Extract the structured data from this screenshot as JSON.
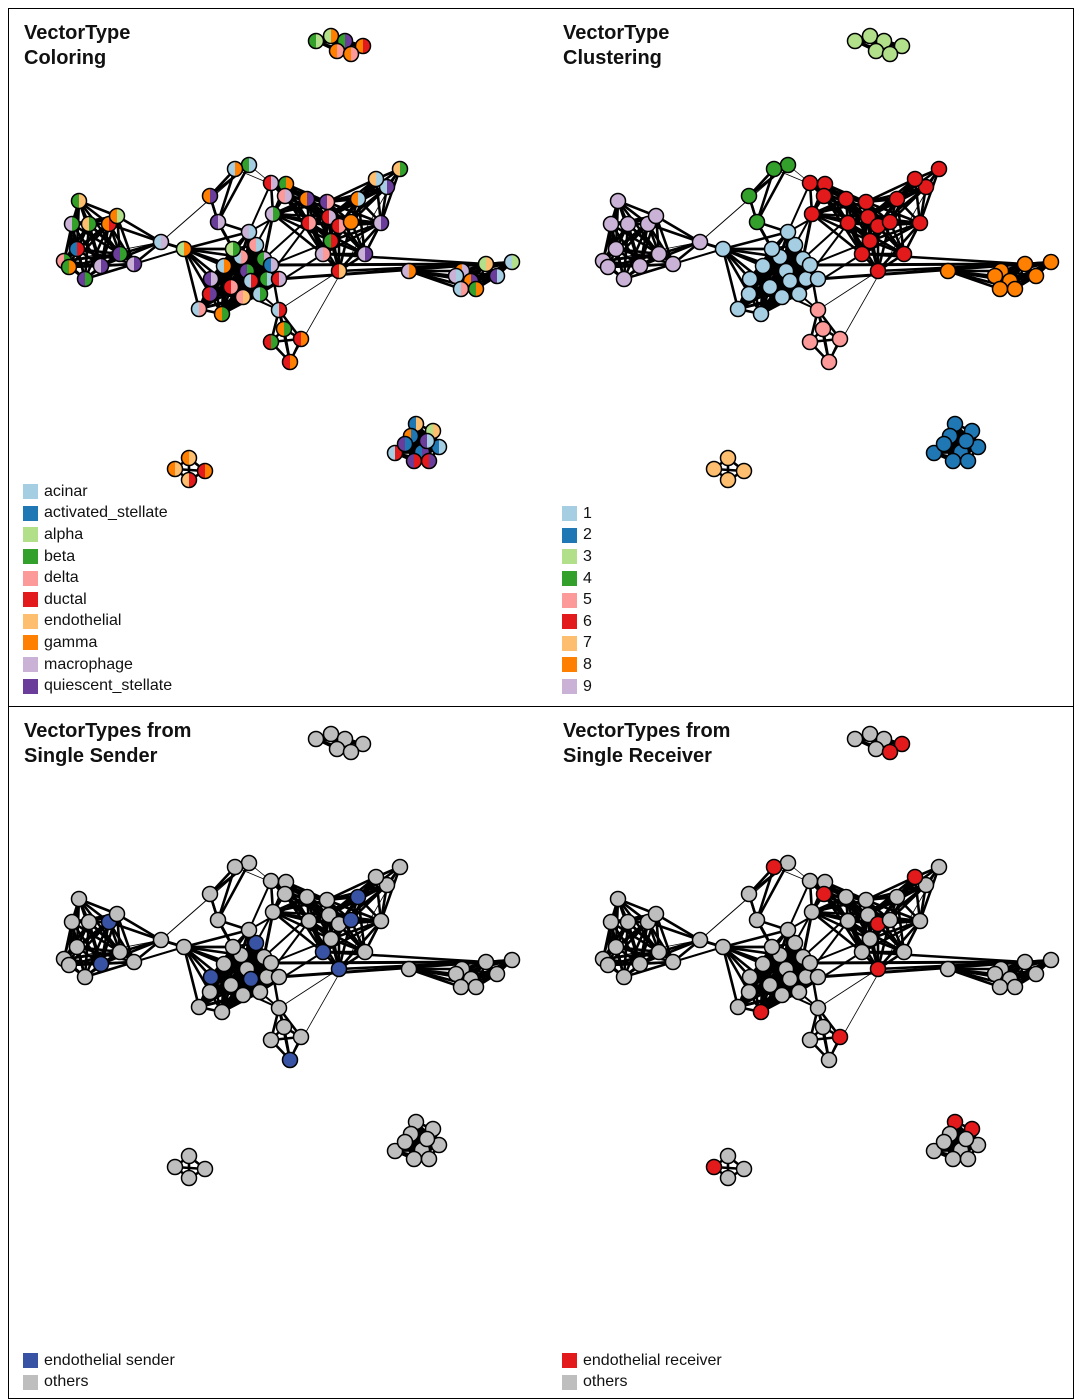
{
  "panels": [
    {
      "title": "VectorType\nColoring"
    },
    {
      "title": "VectorType\nClustering"
    },
    {
      "title": "VectorTypes from\nSingle Sender"
    },
    {
      "title": "VectorTypes from\nSingle Receiver"
    }
  ],
  "legend1": [
    {
      "label": "acinar",
      "color": "#a6cee3"
    },
    {
      "label": "activated_stellate",
      "color": "#1f78b4"
    },
    {
      "label": "alpha",
      "color": "#b2df8a"
    },
    {
      "label": "beta",
      "color": "#33a02c"
    },
    {
      "label": "delta",
      "color": "#fb9a99"
    },
    {
      "label": "ductal",
      "color": "#e31a1c"
    },
    {
      "label": "endothelial",
      "color": "#fdbf6f"
    },
    {
      "label": "gamma",
      "color": "#ff7f00"
    },
    {
      "label": "macrophage",
      "color": "#cab2d6"
    },
    {
      "label": "quiescent_stellate",
      "color": "#6a3d9a"
    }
  ],
  "legend2": [
    {
      "label": "1",
      "color": "#a6cee3"
    },
    {
      "label": "2",
      "color": "#1f78b4"
    },
    {
      "label": "3",
      "color": "#b2df8a"
    },
    {
      "label": "4",
      "color": "#33a02c"
    },
    {
      "label": "5",
      "color": "#fb9a99"
    },
    {
      "label": "6",
      "color": "#e31a1c"
    },
    {
      "label": "7",
      "color": "#fdbf6f"
    },
    {
      "label": "8",
      "color": "#ff7f00"
    },
    {
      "label": "9",
      "color": "#cab2d6"
    }
  ],
  "legend3": [
    {
      "label": "endothelial sender",
      "color": "#3953a4"
    },
    {
      "label": "others",
      "color": "#bebebe"
    }
  ],
  "legend4": [
    {
      "label": "endothelial receiver",
      "color": "#e31a1c"
    },
    {
      "label": "others",
      "color": "#bebebe"
    }
  ]
}
